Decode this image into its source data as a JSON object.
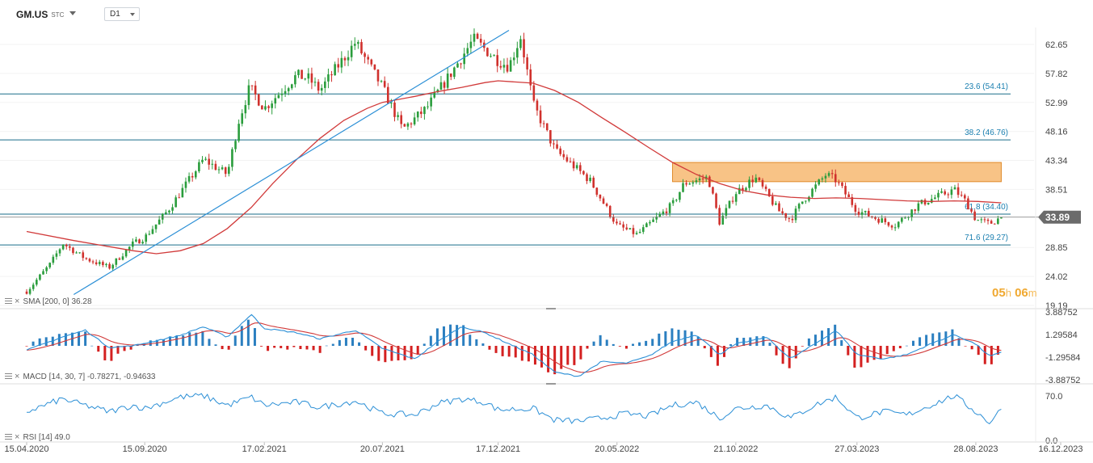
{
  "header": {
    "symbol": "GM.US",
    "symbol_suffix": "STC",
    "timeframe": "D1"
  },
  "countdown": {
    "hours": "05",
    "hours_unit": "h",
    "minutes": "06",
    "minutes_unit": "m"
  },
  "colors": {
    "candle_up": "#2a9d3c",
    "candle_down": "#d0312d",
    "sma": "#d13a3a",
    "trendline": "#2b8fd6",
    "fib_line": "#1a6e8a",
    "fib_label": "#1a7fb0",
    "zone": "#f5a953",
    "macd_line": "#2b8fd6",
    "signal_line": "#d13a3a",
    "hist_pos": "#2b7fc0",
    "hist_neg": "#d42020",
    "rsi": "#2b8fd6",
    "price_badge": "#6b6b6b"
  },
  "chart_data": [
    {
      "type": "candlestick",
      "panel": "price",
      "x_labels": [
        "15.04.2020",
        "15.09.2020",
        "17.02.2021",
        "20.07.2021",
        "17.12.2021",
        "20.05.2022",
        "21.10.2022",
        "27.03.2023",
        "28.08.2023",
        "16.12.2023"
      ],
      "y_ticks": [
        "62.65",
        "57.82",
        "52.99",
        "48.16",
        "43.34",
        "38.51",
        "33.89",
        "28.85",
        "24.02",
        "19.19"
      ],
      "ylim": [
        19.19,
        65.5
      ],
      "last_price": "33.89",
      "price_path": [
        [
          "15.04.2020",
          21.5
        ],
        [
          "15.05.2020",
          26.0
        ],
        [
          "01.06.2020",
          29.5
        ],
        [
          "30.06.2020",
          27.0
        ],
        [
          "31.07.2020",
          25.5
        ],
        [
          "31.08.2020",
          29.5
        ],
        [
          "15.09.2020",
          30.5
        ],
        [
          "15.10.2020",
          35.0
        ],
        [
          "30.11.2020",
          43.5
        ],
        [
          "31.12.2020",
          41.0
        ],
        [
          "15.01.2021",
          50.0
        ],
        [
          "29.01.2021",
          55.5
        ],
        [
          "17.02.2021",
          52.0
        ],
        [
          "31.03.2021",
          57.5
        ],
        [
          "15.04.2021",
          57.0
        ],
        [
          "30.04.2021",
          55.0
        ],
        [
          "15.06.2021",
          63.0
        ],
        [
          "20.07.2021",
          55.5
        ],
        [
          "15.08.2021",
          48.5
        ],
        [
          "15.09.2021",
          52.0
        ],
        [
          "15.10.2021",
          57.5
        ],
        [
          "15.11.2021",
          63.5
        ],
        [
          "17.12.2021",
          60.0
        ],
        [
          "31.12.2021",
          59.0
        ],
        [
          "15.01.2022",
          64.0
        ],
        [
          "01.02.2022",
          52.5
        ],
        [
          "01.03.2022",
          45.0
        ],
        [
          "15.03.2022",
          43.5
        ],
        [
          "15.04.2022",
          40.0
        ],
        [
          "20.05.2022",
          32.5
        ],
        [
          "15.06.2022",
          31.0
        ],
        [
          "31.07.2022",
          36.0
        ],
        [
          "15.08.2022",
          39.5
        ],
        [
          "15.09.2022",
          40.5
        ],
        [
          "30.09.2022",
          33.0
        ],
        [
          "21.10.2022",
          38.0
        ],
        [
          "15.11.2022",
          40.5
        ],
        [
          "15.12.2022",
          35.0
        ],
        [
          "31.12.2022",
          33.5
        ],
        [
          "15.01.2023",
          36.5
        ],
        [
          "15.02.2023",
          41.0
        ],
        [
          "28.02.2023",
          40.0
        ],
        [
          "27.03.2023",
          35.0
        ],
        [
          "15.04.2023",
          34.0
        ],
        [
          "15.05.2023",
          32.5
        ],
        [
          "15.06.2023",
          36.0
        ],
        [
          "31.07.2023",
          38.5
        ],
        [
          "15.08.2023",
          36.5
        ],
        [
          "28.08.2023",
          33.5
        ],
        [
          "15.09.2023",
          32.8
        ],
        [
          "30.09.2023",
          33.89
        ]
      ]
    },
    {
      "type": "line",
      "panel": "price",
      "indicator": "SMA",
      "params": "[200, 0]",
      "value": "36.28",
      "points": [
        [
          "15.04.2020",
          31.5
        ],
        [
          "15.06.2020",
          30.0
        ],
        [
          "31.08.2020",
          28.3
        ],
        [
          "30.09.2020",
          27.8
        ],
        [
          "31.10.2020",
          28.3
        ],
        [
          "30.11.2020",
          29.5
        ],
        [
          "31.12.2020",
          32.0
        ],
        [
          "31.01.2021",
          35.5
        ],
        [
          "28.02.2021",
          39.5
        ],
        [
          "31.03.2021",
          43.5
        ],
        [
          "30.04.2021",
          47.0
        ],
        [
          "31.05.2021",
          50.0
        ],
        [
          "30.06.2021",
          52.0
        ],
        [
          "20.07.2021",
          53.0
        ],
        [
          "31.08.2021",
          54.0
        ],
        [
          "30.09.2021",
          54.8
        ],
        [
          "31.10.2021",
          55.5
        ],
        [
          "30.11.2021",
          56.3
        ],
        [
          "17.12.2021",
          56.6
        ],
        [
          "31.01.2022",
          56.2
        ],
        [
          "28.02.2022",
          55.0
        ],
        [
          "31.03.2022",
          53.0
        ],
        [
          "30.04.2022",
          50.5
        ],
        [
          "31.05.2022",
          48.0
        ],
        [
          "30.06.2022",
          45.5
        ],
        [
          "31.07.2022",
          43.0
        ],
        [
          "31.08.2022",
          41.0
        ],
        [
          "30.09.2022",
          39.5
        ],
        [
          "31.10.2022",
          38.3
        ],
        [
          "30.11.2022",
          37.6
        ],
        [
          "31.12.2022",
          37.2
        ],
        [
          "31.01.2023",
          37.0
        ],
        [
          "28.02.2023",
          37.1
        ],
        [
          "31.03.2023",
          37.0
        ],
        [
          "30.04.2023",
          36.8
        ],
        [
          "31.05.2023",
          36.6
        ],
        [
          "30.06.2023",
          36.5
        ],
        [
          "31.07.2023",
          36.6
        ],
        [
          "31.08.2023",
          36.5
        ],
        [
          "30.09.2023",
          36.28
        ]
      ]
    },
    {
      "type": "hline",
      "panel": "price",
      "indicator": "Fibonacci retracement",
      "levels": [
        {
          "label": "23.6 (54.41)",
          "value": 54.41
        },
        {
          "label": "38.2 (46.76)",
          "value": 46.76
        },
        {
          "label": "61.8 (34.40)",
          "value": 34.4
        },
        {
          "label": "71.6 (29.27)",
          "value": 29.27
        }
      ]
    },
    {
      "type": "trendline",
      "panel": "price",
      "from": [
        "15.06.2020",
        21.0
      ],
      "to": [
        "31.12.2021",
        65.0
      ]
    },
    {
      "type": "zone",
      "panel": "price",
      "x_range": [
        "31.07.2022",
        "30.09.2023"
      ],
      "y_range": [
        39.8,
        43.0
      ]
    },
    {
      "type": "line",
      "panel": "MACD",
      "indicator": "MACD",
      "params": "[14, 30, 7]",
      "values_label": [
        "-0.78271",
        "-0.94633"
      ],
      "y_ticks": [
        "3.88752",
        "1.29584",
        "-1.29584",
        "-3.88752"
      ],
      "ylim": [
        -3.88752,
        3.88752
      ],
      "macd_path": [
        [
          "15.04.2020",
          -0.5
        ],
        [
          "31.05.2020",
          1.0
        ],
        [
          "30.06.2020",
          1.8
        ],
        [
          "31.07.2020",
          -0.2
        ],
        [
          "31.08.2020",
          0.0
        ],
        [
          "15.09.2020",
          0.3
        ],
        [
          "31.10.2020",
          1.2
        ],
        [
          "30.11.2020",
          2.2
        ],
        [
          "31.12.2020",
          1.0
        ],
        [
          "31.01.2021",
          3.6
        ],
        [
          "17.02.2021",
          2.0
        ],
        [
          "31.03.2021",
          1.5
        ],
        [
          "30.04.2021",
          0.8
        ],
        [
          "15.06.2021",
          1.8
        ],
        [
          "20.07.2021",
          -0.3
        ],
        [
          "31.08.2021",
          -1.5
        ],
        [
          "30.09.2021",
          0.5
        ],
        [
          "31.10.2021",
          2.2
        ],
        [
          "30.11.2021",
          1.5
        ],
        [
          "17.12.2021",
          0.8
        ],
        [
          "31.01.2022",
          -1.0
        ],
        [
          "28.02.2022",
          -3.0
        ],
        [
          "31.03.2022",
          -3.5
        ],
        [
          "30.04.2022",
          -1.8
        ],
        [
          "31.05.2022",
          -2.0
        ],
        [
          "30.06.2022",
          -1.2
        ],
        [
          "31.07.2022",
          0.5
        ],
        [
          "31.08.2022",
          1.3
        ],
        [
          "30.09.2022",
          -1.0
        ],
        [
          "21.10.2022",
          0.2
        ],
        [
          "30.11.2022",
          1.0
        ],
        [
          "31.12.2022",
          -1.5
        ],
        [
          "31.01.2023",
          0.2
        ],
        [
          "28.02.2023",
          1.8
        ],
        [
          "27.03.2023",
          -1.0
        ],
        [
          "30.04.2023",
          -1.5
        ],
        [
          "31.05.2023",
          -1.0
        ],
        [
          "30.06.2023",
          0.2
        ],
        [
          "31.07.2023",
          1.3
        ],
        [
          "28.08.2023",
          0.2
        ],
        [
          "15.09.2023",
          -1.2
        ],
        [
          "30.09.2023",
          -0.78271
        ]
      ]
    },
    {
      "type": "line",
      "panel": "RSI",
      "indicator": "RSI",
      "params": "[14]",
      "value": "49.0",
      "y_ticks": [
        "70.0",
        "0.0"
      ],
      "ylim": [
        0,
        100
      ],
      "points": [
        [
          "15.04.2020",
          45
        ],
        [
          "31.05.2020",
          65
        ],
        [
          "30.06.2020",
          55
        ],
        [
          "31.07.2020",
          45
        ],
        [
          "31.08.2020",
          55
        ],
        [
          "15.09.2020",
          50
        ],
        [
          "31.10.2020",
          68
        ],
        [
          "30.11.2020",
          70
        ],
        [
          "31.12.2020",
          55
        ],
        [
          "31.01.2021",
          68
        ],
        [
          "17.02.2021",
          55
        ],
        [
          "31.03.2021",
          60
        ],
        [
          "30.04.2021",
          52
        ],
        [
          "15.06.2021",
          62
        ],
        [
          "20.07.2021",
          42
        ],
        [
          "31.08.2021",
          40
        ],
        [
          "30.09.2021",
          58
        ],
        [
          "31.10.2021",
          65
        ],
        [
          "30.11.2021",
          60
        ],
        [
          "17.12.2021",
          48
        ],
        [
          "31.01.2022",
          50
        ],
        [
          "28.02.2022",
          32
        ],
        [
          "31.03.2022",
          30
        ],
        [
          "30.04.2022",
          35
        ],
        [
          "31.05.2022",
          42
        ],
        [
          "30.06.2022",
          38
        ],
        [
          "31.07.2022",
          55
        ],
        [
          "31.08.2022",
          60
        ],
        [
          "30.09.2022",
          35
        ],
        [
          "21.10.2022",
          50
        ],
        [
          "30.11.2022",
          55
        ],
        [
          "31.12.2022",
          35
        ],
        [
          "31.01.2023",
          55
        ],
        [
          "28.02.2023",
          68
        ],
        [
          "27.03.2023",
          35
        ],
        [
          "30.04.2023",
          45
        ],
        [
          "31.05.2023",
          40
        ],
        [
          "30.06.2023",
          55
        ],
        [
          "31.07.2023",
          70
        ],
        [
          "28.08.2023",
          45
        ],
        [
          "15.09.2023",
          28
        ],
        [
          "30.09.2023",
          49
        ]
      ]
    }
  ]
}
